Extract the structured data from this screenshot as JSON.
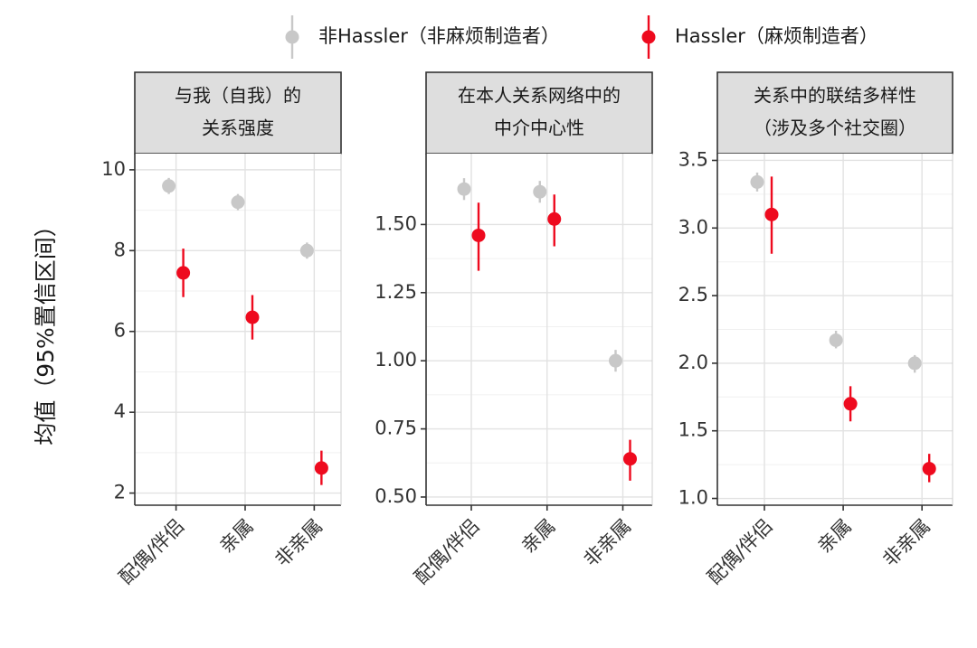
{
  "chart_data": {
    "type": "scatter",
    "y_axis_title": "均值（95%置信区间）",
    "categories": [
      "配偶/伴侣",
      "亲属",
      "非亲属"
    ],
    "legend": {
      "position": "top",
      "entries": [
        {
          "name": "非Hassler（非麻烦制造者）",
          "color": "#c8c8c8"
        },
        {
          "name": "Hassler（麻烦制造者）",
          "color": "#ee0a1e"
        }
      ]
    },
    "grid": true,
    "panels": [
      {
        "strip": [
          "与我（自我）的",
          "关系强度"
        ],
        "ylim": [
          1.7,
          10.4
        ],
        "yticks": [
          2,
          4,
          6,
          8,
          10
        ],
        "ytick_labels": [
          "2",
          "4",
          "6",
          "8",
          "10"
        ],
        "series": [
          {
            "name": "非Hassler（非麻烦制造者）",
            "points": [
              {
                "y": 9.6,
                "lo": 9.4,
                "hi": 9.8
              },
              {
                "y": 9.2,
                "lo": 9.0,
                "hi": 9.4
              },
              {
                "y": 8.0,
                "lo": 7.8,
                "hi": 8.2
              }
            ]
          },
          {
            "name": "Hassler（麻烦制造者）",
            "points": [
              {
                "y": 7.45,
                "lo": 6.85,
                "hi": 8.05
              },
              {
                "y": 6.35,
                "lo": 5.8,
                "hi": 6.9
              },
              {
                "y": 2.62,
                "lo": 2.2,
                "hi": 3.05
              }
            ]
          }
        ]
      },
      {
        "strip": [
          "在本人关系网络中的",
          "中介中心性"
        ],
        "ylim": [
          0.47,
          1.76
        ],
        "yticks": [
          0.5,
          0.75,
          1.0,
          1.25,
          1.5
        ],
        "ytick_labels": [
          "0.50",
          "0.75",
          "1.00",
          "1.25",
          "1.50"
        ],
        "series": [
          {
            "name": "非Hassler（非麻烦制造者）",
            "points": [
              {
                "y": 1.63,
                "lo": 1.59,
                "hi": 1.67
              },
              {
                "y": 1.62,
                "lo": 1.58,
                "hi": 1.66
              },
              {
                "y": 1.0,
                "lo": 0.96,
                "hi": 1.04
              }
            ]
          },
          {
            "name": "Hassler（麻烦制造者）",
            "points": [
              {
                "y": 1.46,
                "lo": 1.33,
                "hi": 1.58
              },
              {
                "y": 1.52,
                "lo": 1.42,
                "hi": 1.61
              },
              {
                "y": 0.64,
                "lo": 0.56,
                "hi": 0.71
              }
            ]
          }
        ]
      },
      {
        "strip": [
          "关系中的联结多样性",
          "（涉及多个社交圈）"
        ],
        "ylim": [
          0.95,
          3.55
        ],
        "yticks": [
          1.0,
          1.5,
          2.0,
          2.5,
          3.0,
          3.5
        ],
        "ytick_labels": [
          "1.0",
          "1.5",
          "2.0",
          "2.5",
          "3.0",
          "3.5"
        ],
        "series": [
          {
            "name": "非Hassler（非麻烦制造者）",
            "points": [
              {
                "y": 3.34,
                "lo": 3.27,
                "hi": 3.41
              },
              {
                "y": 2.17,
                "lo": 2.11,
                "hi": 2.24
              },
              {
                "y": 2.0,
                "lo": 1.93,
                "hi": 2.06
              }
            ]
          },
          {
            "name": "Hassler（麻烦制造者）",
            "points": [
              {
                "y": 3.1,
                "lo": 2.81,
                "hi": 3.38
              },
              {
                "y": 1.7,
                "lo": 1.57,
                "hi": 1.83
              },
              {
                "y": 1.22,
                "lo": 1.12,
                "hi": 1.33
              }
            ]
          }
        ]
      }
    ]
  }
}
